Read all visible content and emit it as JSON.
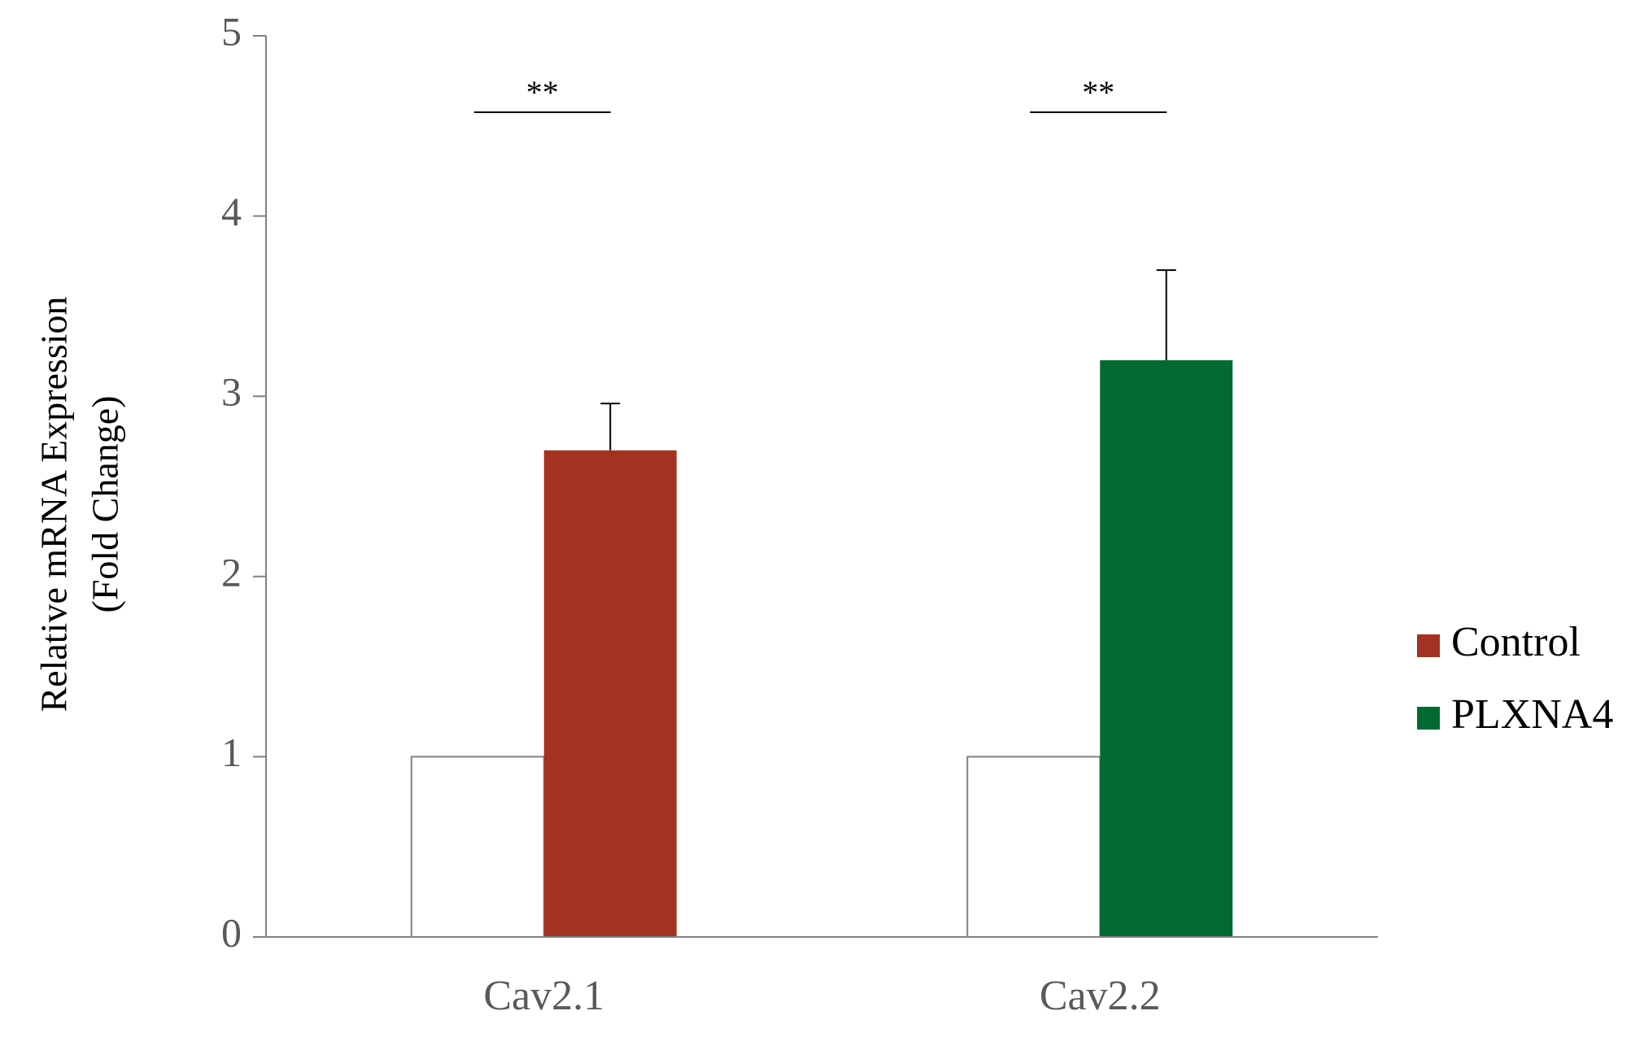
{
  "chart_data": {
    "type": "bar",
    "ylabel": [
      "Relative mRNA Expression",
      "(Fold Change)"
    ],
    "categories": [
      "Cav2.1",
      "Cav2.2"
    ],
    "series": [
      {
        "color": "#ffffff",
        "values": [
          1,
          1
        ]
      },
      {
        "colors": [
          "#a33220",
          "#006a32"
        ],
        "values": [
          2.7,
          3.2
        ],
        "errors": [
          0.26,
          0.5
        ]
      }
    ],
    "significance": [
      "**",
      "**"
    ],
    "legend": [
      {
        "name": "Control",
        "color": "#a33220"
      },
      {
        "name": "PLXNA4",
        "color": "#006a32"
      }
    ],
    "ylim": [
      0,
      5
    ],
    "yticks": [
      0,
      1,
      2,
      3,
      4,
      5
    ]
  }
}
